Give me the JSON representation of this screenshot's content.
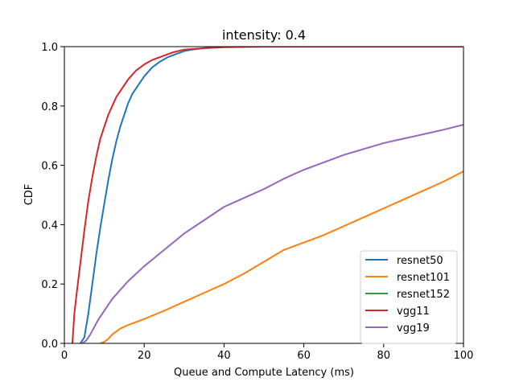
{
  "chart_data": {
    "type": "line",
    "title": "intensity: 0.4",
    "xlabel": "Queue and Compute Latency (ms)",
    "ylabel": "CDF",
    "xlim": [
      0,
      100
    ],
    "ylim": [
      0,
      1
    ],
    "xticks": [
      "0",
      "20",
      "40",
      "60",
      "80",
      "100"
    ],
    "yticks": [
      "0.0",
      "0.2",
      "0.4",
      "0.6",
      "0.8",
      "1.0"
    ],
    "grid": false,
    "legend_position": "lower-right",
    "series": [
      {
        "name": "resnet50",
        "color": "#1f77b4",
        "x": [
          4,
          5,
          6,
          7,
          8,
          9,
          10,
          11,
          12,
          13,
          14,
          15,
          16,
          17,
          18,
          19,
          20,
          22,
          24,
          26,
          28,
          30,
          32,
          35,
          38,
          40
        ],
        "y": [
          0.0,
          0.02,
          0.1,
          0.2,
          0.3,
          0.39,
          0.47,
          0.55,
          0.62,
          0.68,
          0.73,
          0.77,
          0.81,
          0.84,
          0.86,
          0.88,
          0.9,
          0.93,
          0.95,
          0.965,
          0.975,
          0.985,
          0.99,
          0.995,
          0.998,
          1.0
        ]
      },
      {
        "name": "resnet101",
        "color": "#ff7f0e",
        "x": [
          9,
          10,
          11,
          12,
          14,
          16,
          18,
          20,
          25,
          30,
          35,
          40,
          45,
          50,
          55,
          60,
          65,
          70,
          75,
          80,
          85,
          90,
          95,
          100
        ],
        "y": [
          0.0,
          0.005,
          0.015,
          0.03,
          0.05,
          0.062,
          0.072,
          0.082,
          0.11,
          0.14,
          0.17,
          0.2,
          0.235,
          0.275,
          0.315,
          0.34,
          0.365,
          0.395,
          0.425,
          0.455,
          0.485,
          0.515,
          0.545,
          0.58
        ]
      },
      {
        "name": "resnet152",
        "color": "#2ca02c",
        "x": [],
        "y": []
      },
      {
        "name": "vgg11",
        "color": "#d62728",
        "x": [
          2,
          2.5,
          3,
          4,
          5,
          6,
          7,
          8,
          9,
          10,
          11,
          12,
          13,
          14,
          15,
          16,
          18,
          20,
          22,
          24,
          27,
          30,
          35,
          40,
          45,
          50
        ],
        "y": [
          0.0,
          0.1,
          0.16,
          0.27,
          0.38,
          0.48,
          0.56,
          0.63,
          0.69,
          0.73,
          0.77,
          0.8,
          0.83,
          0.85,
          0.87,
          0.89,
          0.92,
          0.94,
          0.955,
          0.965,
          0.98,
          0.99,
          0.995,
          0.998,
          0.999,
          1.0
        ]
      },
      {
        "name": "vgg19",
        "color": "#9467bd",
        "x": [
          4.5,
          5.5,
          6.5,
          7.5,
          8.5,
          10,
          12,
          14,
          16,
          18,
          20,
          25,
          30,
          35,
          40,
          45,
          50,
          55,
          60,
          65,
          70,
          75,
          80,
          85,
          90,
          95,
          100
        ],
        "y": [
          0.0,
          0.01,
          0.03,
          0.055,
          0.08,
          0.11,
          0.15,
          0.18,
          0.21,
          0.235,
          0.26,
          0.315,
          0.37,
          0.415,
          0.46,
          0.49,
          0.52,
          0.555,
          0.585,
          0.61,
          0.635,
          0.655,
          0.675,
          0.69,
          0.705,
          0.72,
          0.737
        ]
      }
    ]
  }
}
